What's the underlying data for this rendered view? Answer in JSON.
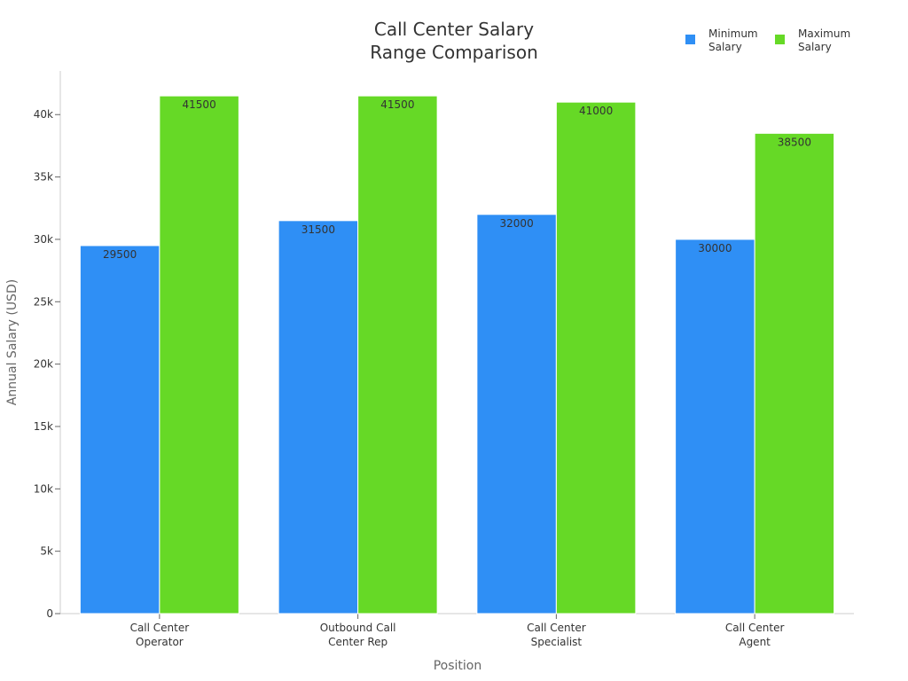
{
  "chart_data": {
    "type": "bar",
    "title": [
      "Call Center Salary",
      "Range Comparison"
    ],
    "xlabel": "Position",
    "ylabel": "Annual Salary (USD)",
    "categories": [
      [
        "Call Center",
        "Operator"
      ],
      [
        "Outbound Call",
        "Center Rep"
      ],
      [
        "Call Center",
        "Specialist"
      ],
      [
        "Call Center",
        "Agent"
      ]
    ],
    "series": [
      {
        "name": [
          "Minimum",
          "Salary"
        ],
        "color": "#2f8ff5",
        "values": [
          29500,
          31500,
          32000,
          30000
        ]
      },
      {
        "name": [
          "Maximum",
          "Salary"
        ],
        "color": "#66d926",
        "values": [
          41500,
          41500,
          41000,
          38500
        ]
      }
    ],
    "ylim": [
      0,
      43500
    ],
    "yticks": [
      {
        "value": 0,
        "label": "0"
      },
      {
        "value": 5000,
        "label": "5k"
      },
      {
        "value": 10000,
        "label": "10k"
      },
      {
        "value": 15000,
        "label": "15k"
      },
      {
        "value": 20000,
        "label": "20k"
      },
      {
        "value": 25000,
        "label": "25k"
      },
      {
        "value": 30000,
        "label": "30k"
      },
      {
        "value": 35000,
        "label": "35k"
      },
      {
        "value": 40000,
        "label": "40k"
      }
    ],
    "grid": false,
    "legend": "top-right"
  }
}
